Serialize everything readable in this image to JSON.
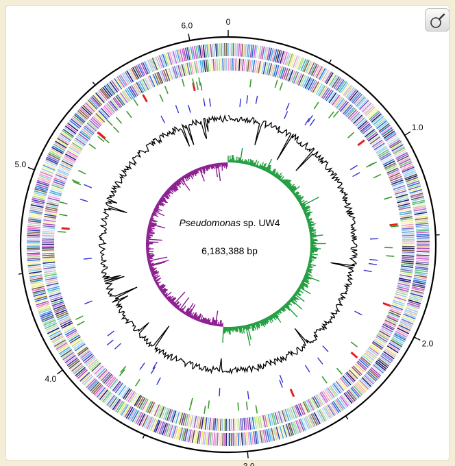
{
  "figure": {
    "organism_genus": "Pseudomonas",
    "organism_rest": " sp. UW4",
    "genome_size": "6,183,388 bp"
  },
  "axis": {
    "unit_note": "Mbp",
    "total_mbp": 6.183388,
    "labels": [
      {
        "text": "0",
        "pos_mbp": 0
      },
      {
        "text": "1.0",
        "pos_mbp": 1.0
      },
      {
        "text": "2.0",
        "pos_mbp": 2.0
      },
      {
        "text": "3.0",
        "pos_mbp": 3.0
      },
      {
        "text": "4.0",
        "pos_mbp": 4.0
      },
      {
        "text": "5.0",
        "pos_mbp": 5.0
      },
      {
        "text": "6.0",
        "pos_mbp": 6.0
      }
    ],
    "minor_step_mbp": 0.5
  },
  "colors": {
    "backbone": "#000000",
    "gc_content": "#000000",
    "gc_skew_positive": "#1a9a3a",
    "gc_skew_negative": "#8b1a8f",
    "rna_red": "#e02020",
    "rna_green": "#3a9a2a",
    "island_blue": "#3030d0",
    "cog_palette": [
      "#1c1c6e",
      "#3c3cb4",
      "#7b68c8",
      "#c060d0",
      "#e070c8",
      "#f0a0d0",
      "#8fd0f0",
      "#4aa8e0",
      "#2a6fd0",
      "#9ec8e8",
      "#f5f0a0",
      "#e8f070",
      "#b0e090",
      "#60c080",
      "#c0c0c0",
      "#806040",
      "#f0c0a0",
      "#a050b0",
      "#505050",
      "#d0e0f0"
    ]
  },
  "tracks": [
    {
      "name": "cds-forward",
      "type": "colored-ticks"
    },
    {
      "name": "cds-reverse",
      "type": "colored-ticks"
    },
    {
      "name": "rna-features",
      "type": "red-green-ticks"
    },
    {
      "name": "genomic-islands",
      "type": "blue-ticks"
    },
    {
      "name": "gc-content",
      "type": "line-plot"
    },
    {
      "name": "gc-skew",
      "type": "histogram"
    }
  ]
}
